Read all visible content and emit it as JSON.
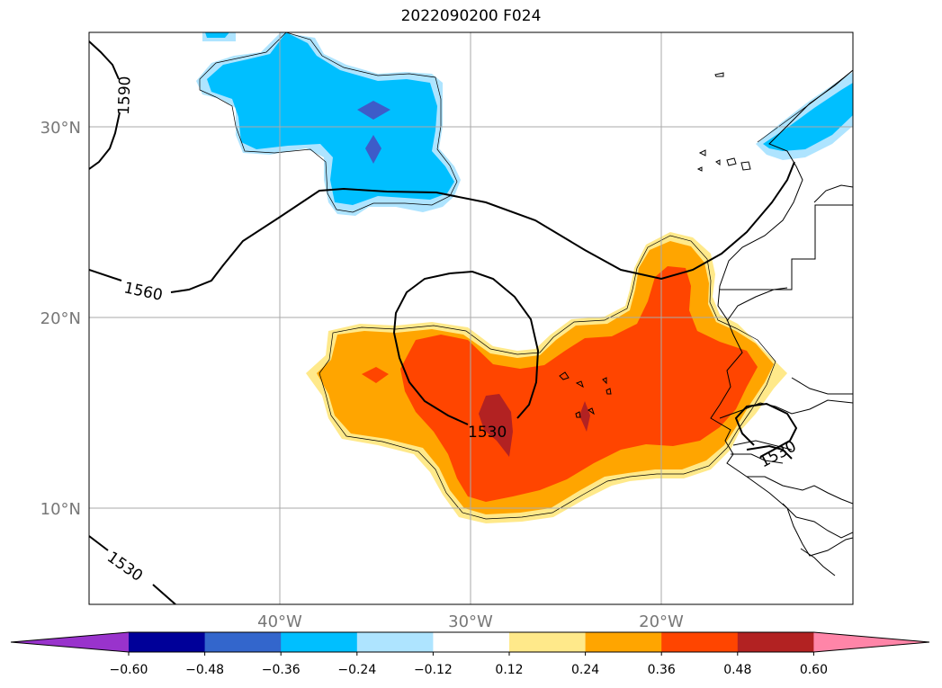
{
  "title": "2022090200 F024",
  "lat_labels": [
    "30°N",
    "20°N",
    "10°N"
  ],
  "lon_labels": [
    "40°W",
    "30°W",
    "20°W"
  ],
  "contour_labels": [
    "1590",
    "1560",
    "1530",
    "1530",
    "1530"
  ],
  "colorbar": {
    "ticks": [
      "−0.60",
      "−0.48",
      "−0.36",
      "−0.24",
      "−0.12",
      "0.12",
      "0.24",
      "0.36",
      "0.48",
      "0.60"
    ],
    "colors": [
      "#9933cc",
      "#000099",
      "#3366cc",
      "#00bfff",
      "#aee4ff",
      "#ffffff",
      "#ffe98a",
      "#ffa500",
      "#ff4500",
      "#b22222",
      "#ff85a8"
    ]
  },
  "field_colors": {
    "light_blue": "#aee4ff",
    "blue": "#00bfff",
    "dark_blue": "#3d5cc9",
    "yellow": "#ffe98a",
    "orange": "#ffa500",
    "red_orange": "#ff4500",
    "dark_red": "#b22222"
  }
}
